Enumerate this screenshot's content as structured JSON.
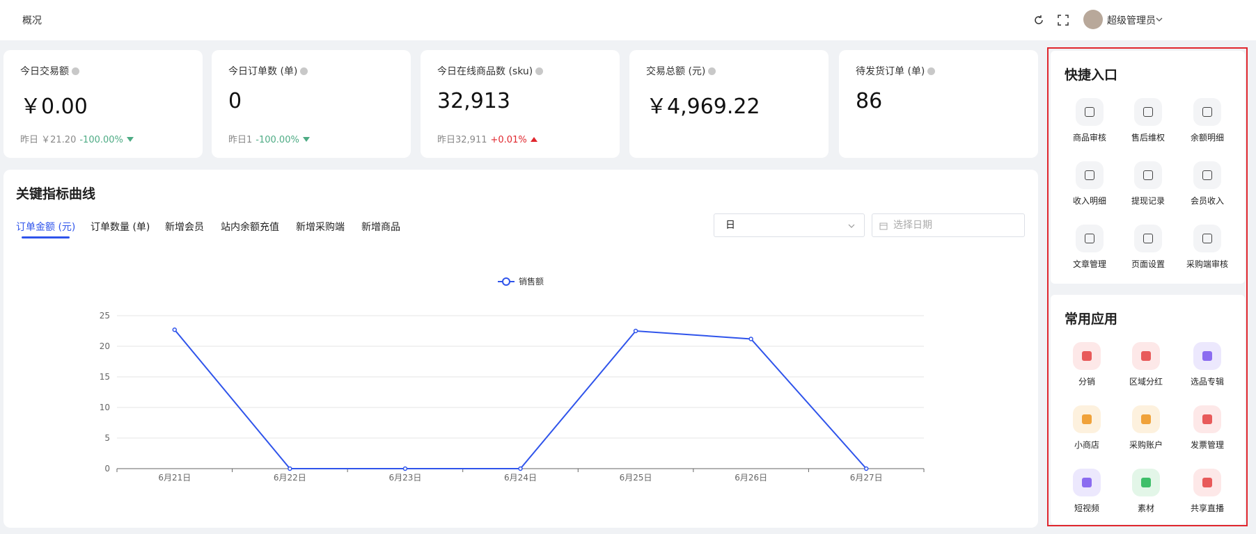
{
  "header": {
    "breadcrumb": "概况",
    "user": "超级管理员"
  },
  "stats": [
    {
      "label": "今日交易额",
      "value": "￥0.00",
      "compare": "昨日 ￥21.20",
      "change": "-100.00%",
      "trend": "down"
    },
    {
      "label": "今日订单数 (单)",
      "value": "0",
      "compare": "昨日1",
      "change": "-100.00%",
      "trend": "down"
    },
    {
      "label": "今日在线商品数 (sku)",
      "value": "32,913",
      "compare": "昨日32,911",
      "change": "+0.01%",
      "trend": "up"
    },
    {
      "label": "交易总额 (元)",
      "value": "￥4,969.22"
    },
    {
      "label": "待发货订单 (单)",
      "value": "86"
    }
  ],
  "panel": {
    "title": "关键指标曲线",
    "tabs": [
      "订单金额 (元)",
      "订单数量 (单)",
      "新增会员",
      "站内余额充值",
      "新增采购端",
      "新增商品"
    ],
    "period": "日",
    "date_placeholder": "选择日期"
  },
  "chart_data": {
    "type": "line",
    "categories": [
      "6月21日",
      "6月22日",
      "6月23日",
      "6月24日",
      "6月25日",
      "6月26日",
      "6月27日"
    ],
    "series": [
      {
        "name": "销售额",
        "color": "#2f54eb",
        "values": [
          22.7,
          0,
          0,
          0,
          22.5,
          21.2,
          0
        ]
      }
    ],
    "ylim": [
      0,
      25
    ],
    "yticks": [
      0,
      5,
      10,
      15,
      20,
      25
    ],
    "grid": true,
    "legend": "top"
  },
  "quick_entry": {
    "title": "快捷入口",
    "items": [
      "商品审核",
      "售后维权",
      "余额明细",
      "收入明细",
      "提现记录",
      "会员收入",
      "文章管理",
      "页面设置",
      "采购端审核"
    ]
  },
  "apps": {
    "title": "常用应用",
    "items": [
      "分销",
      "区域分红",
      "选品专辑",
      "小商店",
      "采购账户",
      "发票管理",
      "短视频",
      "素材",
      "共享直播"
    ]
  }
}
